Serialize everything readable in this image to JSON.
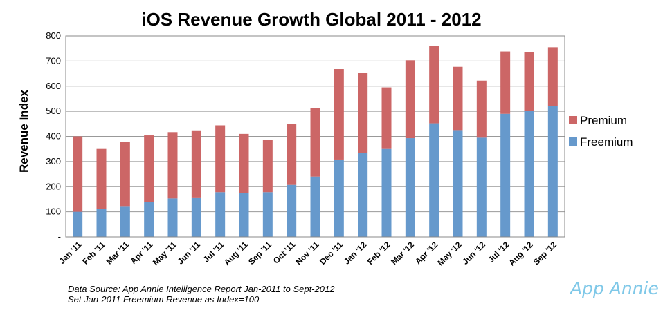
{
  "chart_data": {
    "type": "bar",
    "stacked": true,
    "title": "iOS Revenue Growth Global 2011 - 2012",
    "ylabel": "Revenue Index",
    "xlabel": "",
    "ylim": [
      0,
      800
    ],
    "yticks": [
      "-",
      "100",
      "200",
      "300",
      "400",
      "500",
      "600",
      "700",
      "800"
    ],
    "grid": true,
    "legend_position": "right",
    "categories": [
      "Jan '11",
      "Feb '11",
      "Mar '11",
      "Apr '11",
      "May '11",
      "Jun '11",
      "Jul '11",
      "Aug '11",
      "Sep '11",
      "Oct '11",
      "Nov '11",
      "Dec '11",
      "Jan '12",
      "Feb '12",
      "Mar '12",
      "Apr '12",
      "May '12",
      "Jun '12",
      "Jul '12",
      "Aug '12",
      "Sep '12"
    ],
    "series": [
      {
        "name": "Freemium",
        "color": "#6699cc",
        "values": [
          100,
          110,
          120,
          138,
          153,
          157,
          178,
          175,
          178,
          207,
          240,
          308,
          335,
          350,
          393,
          452,
          425,
          395,
          490,
          502,
          520
        ]
      },
      {
        "name": "Premium",
        "color": "#cc6666",
        "values": [
          300,
          240,
          257,
          266,
          264,
          267,
          266,
          235,
          207,
          243,
          272,
          360,
          317,
          245,
          310,
          308,
          252,
          227,
          248,
          232,
          235
        ]
      }
    ],
    "legend": [
      {
        "name": "Premium",
        "color": "#cc6666"
      },
      {
        "name": "Freemium",
        "color": "#6699cc"
      }
    ]
  },
  "footnote": {
    "line1": "Data Source: App Annie Intelligence Report Jan-2011 to Sept-2012",
    "line2": "Set Jan-2011 Freemium Revenue as Index=100"
  },
  "brand": {
    "logo_text": "App Annie",
    "color": "#7fc8e8"
  }
}
